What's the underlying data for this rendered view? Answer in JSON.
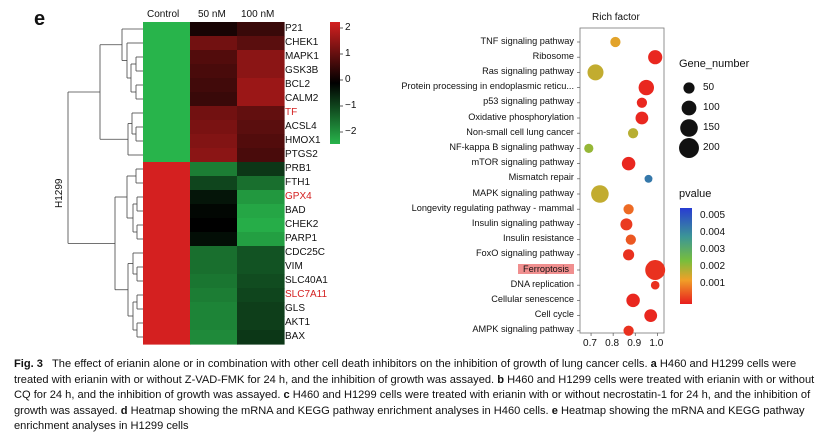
{
  "figure": {
    "panel_label": "e",
    "heatmap": {
      "cell_line_label": "H1299",
      "columns": [
        "Control",
        "50 nM",
        "100 nM"
      ],
      "colorbar_ticks": [
        "2",
        "1",
        "0",
        "−1",
        "−2"
      ],
      "colorbar_colors": {
        "high": "#d42020",
        "mid": "#000000",
        "low": "#28b44b"
      },
      "genes": [
        {
          "name": "P21",
          "highlight": false,
          "values": [
            -1.4,
            0.15,
            0.35
          ]
        },
        {
          "name": "CHEK1",
          "highlight": false,
          "values": [
            -1.3,
            0.7,
            0.55
          ]
        },
        {
          "name": "MAPK1",
          "highlight": false,
          "values": [
            -1.3,
            0.5,
            0.85
          ]
        },
        {
          "name": "GSK3B",
          "highlight": false,
          "values": [
            -1.3,
            0.45,
            0.85
          ]
        },
        {
          "name": "BCL2",
          "highlight": false,
          "values": [
            -1.3,
            0.4,
            0.95
          ]
        },
        {
          "name": "CALM2",
          "highlight": false,
          "values": [
            -1.3,
            0.35,
            0.95
          ]
        },
        {
          "name": "TF",
          "highlight": true,
          "values": [
            -1.3,
            0.7,
            0.6
          ]
        },
        {
          "name": "ACSL4",
          "highlight": false,
          "values": [
            -1.3,
            0.75,
            0.55
          ]
        },
        {
          "name": "HMOX1",
          "highlight": false,
          "values": [
            -1.3,
            0.8,
            0.5
          ]
        },
        {
          "name": "PTGS2",
          "highlight": false,
          "values": [
            -1.3,
            0.85,
            0.45
          ]
        },
        {
          "name": "PRB1",
          "highlight": false,
          "values": [
            1.3,
            -0.9,
            -0.4
          ]
        },
        {
          "name": "FTH1",
          "highlight": false,
          "values": [
            1.3,
            -0.5,
            -0.8
          ]
        },
        {
          "name": "GPX4",
          "highlight": true,
          "values": [
            1.3,
            -0.15,
            -1.1
          ]
        },
        {
          "name": "BAD",
          "highlight": false,
          "values": [
            1.3,
            -0.05,
            -1.2
          ]
        },
        {
          "name": "CHEK2",
          "highlight": false,
          "values": [
            1.3,
            0.0,
            -1.25
          ]
        },
        {
          "name": "PARP1",
          "highlight": false,
          "values": [
            1.3,
            -0.1,
            -1.15
          ]
        },
        {
          "name": "CDC25C",
          "highlight": false,
          "values": [
            1.3,
            -0.8,
            -0.6
          ]
        },
        {
          "name": "VIM",
          "highlight": false,
          "values": [
            1.3,
            -0.8,
            -0.6
          ]
        },
        {
          "name": "SLC40A1",
          "highlight": false,
          "values": [
            1.3,
            -0.85,
            -0.55
          ]
        },
        {
          "name": "SLC7A11",
          "highlight": true,
          "values": [
            1.3,
            -0.9,
            -0.5
          ]
        },
        {
          "name": "GLS",
          "highlight": false,
          "values": [
            1.3,
            -0.95,
            -0.45
          ]
        },
        {
          "name": "AKT1",
          "highlight": false,
          "values": [
            1.3,
            -0.95,
            -0.45
          ]
        },
        {
          "name": "BAX",
          "highlight": false,
          "values": [
            1.3,
            -1.0,
            -0.4
          ]
        }
      ]
    },
    "kegg": {
      "chart_data": {
        "type": "scatter",
        "title": "Rich factor",
        "x_ticks": [
          "0.7",
          "0.8",
          "0.9",
          "1.0"
        ],
        "xlim": [
          0.65,
          1.03
        ],
        "terms": [
          {
            "name": "TNF signaling  pathway",
            "rich_factor": 0.81,
            "gene_number": 40,
            "pvalue": 0.0015,
            "highlight": false
          },
          {
            "name": "Ribosome",
            "rich_factor": 0.99,
            "gene_number": 90,
            "pvalue": 0.0001,
            "highlight": false
          },
          {
            "name": "Ras signaling pathway",
            "rich_factor": 0.72,
            "gene_number": 120,
            "pvalue": 0.0018,
            "highlight": false
          },
          {
            "name": "Protein processing in endoplasmic reticu...",
            "rich_factor": 0.95,
            "gene_number": 110,
            "pvalue": 0.0001,
            "highlight": false
          },
          {
            "name": "p53 signaling pathway",
            "rich_factor": 0.93,
            "gene_number": 40,
            "pvalue": 0.0001,
            "highlight": false
          },
          {
            "name": "Oxidative phosphorylation",
            "rich_factor": 0.93,
            "gene_number": 70,
            "pvalue": 0.0001,
            "highlight": false
          },
          {
            "name": "Non-small cell lung cancer",
            "rich_factor": 0.89,
            "gene_number": 40,
            "pvalue": 0.0019,
            "highlight": false
          },
          {
            "name": "NF-kappa B signaling pathway",
            "rich_factor": 0.69,
            "gene_number": 30,
            "pvalue": 0.0022,
            "highlight": false
          },
          {
            "name": "mTOR signaling pathway",
            "rich_factor": 0.87,
            "gene_number": 80,
            "pvalue": 0.0001,
            "highlight": false
          },
          {
            "name": "Mismatch repair",
            "rich_factor": 0.96,
            "gene_number": 20,
            "pvalue": 0.0044,
            "highlight": false
          },
          {
            "name": "MAPK signaling pathway",
            "rich_factor": 0.74,
            "gene_number": 150,
            "pvalue": 0.0018,
            "highlight": false
          },
          {
            "name": "Longevity regulating pathway - mammal",
            "rich_factor": 0.87,
            "gene_number": 40,
            "pvalue": 0.0008,
            "highlight": false
          },
          {
            "name": "Insulin signaling pathway",
            "rich_factor": 0.86,
            "gene_number": 60,
            "pvalue": 0.0003,
            "highlight": false
          },
          {
            "name": "Insulin resistance",
            "rich_factor": 0.88,
            "gene_number": 40,
            "pvalue": 0.0006,
            "highlight": false
          },
          {
            "name": "FoxO signaling pathway",
            "rich_factor": 0.87,
            "gene_number": 50,
            "pvalue": 0.0002,
            "highlight": false
          },
          {
            "name": "Ferroptosis",
            "rich_factor": 0.99,
            "gene_number": 200,
            "pvalue": 0.0002,
            "highlight": true
          },
          {
            "name": "DNA replication",
            "rich_factor": 0.99,
            "gene_number": 25,
            "pvalue": 0.0002,
            "highlight": false
          },
          {
            "name": "Cellular senescence",
            "rich_factor": 0.89,
            "gene_number": 80,
            "pvalue": 0.0001,
            "highlight": false
          },
          {
            "name": "Cell cycle",
            "rich_factor": 0.97,
            "gene_number": 70,
            "pvalue": 0.0001,
            "highlight": false
          },
          {
            "name": "AMPK signaling pathway",
            "rich_factor": 0.87,
            "gene_number": 40,
            "pvalue": 0.0002,
            "highlight": false
          }
        ],
        "size_legend": {
          "title": "Gene_number",
          "values": [
            "50",
            "100",
            "150",
            "200"
          ]
        },
        "color_legend": {
          "title": "pvalue",
          "values": [
            "0.005",
            "0.004",
            "0.003",
            "0.002",
            "0.001"
          ],
          "range": [
            0,
            0.0055
          ]
        }
      }
    },
    "caption": {
      "fig_label": "Fig. 3",
      "title_text": "The effect of erianin alone or in combination with other cell death inhibitors on the inhibition of growth of lung cancer cells.",
      "a_label": "a",
      "a_text": "H460 and H1299 cells were treated with erianin with or without Z-VAD-FMK for 24 h, and the inhibition of growth was assayed.",
      "b_label": "b",
      "b_text": "H460 and H1299 cells were treated with erianin with or without CQ for 24 h, and the inhibition of growth was assayed.",
      "c_label": "c",
      "c_text": "H460 and H1299 cells were treated with erianin with or without necrostatin-1 for 24 h, and the inhibition of growth was assayed.",
      "d_label": "d",
      "d_text": "Heatmap showing the mRNA and KEGG pathway enrichment analyses in H460 cells.",
      "e_label": "e",
      "e_text": "Heatmap showing the mRNA and KEGG pathway enrichment analyses in H1299 cells"
    }
  }
}
